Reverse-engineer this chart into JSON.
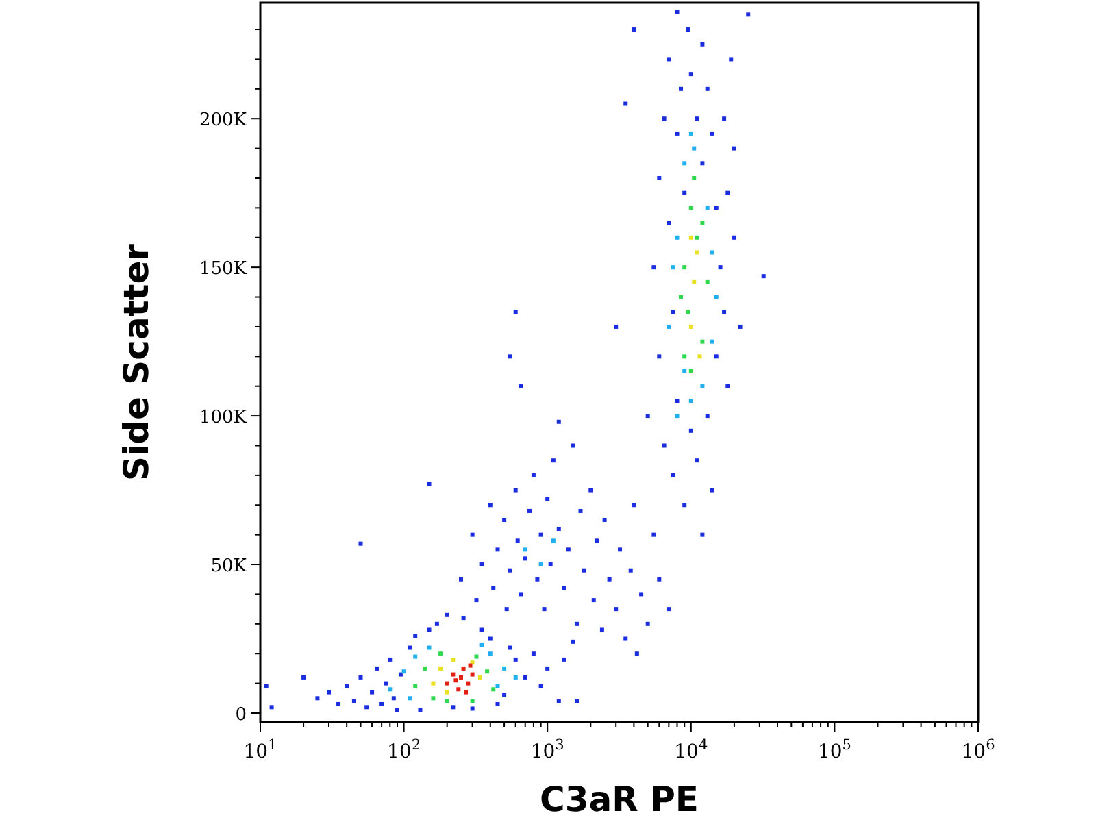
{
  "chart_data": {
    "type": "scatter",
    "xlabel": "C3aR PE",
    "ylabel": "Side Scatter",
    "log": "x",
    "marker": "square",
    "grid": false,
    "xlim": [
      10,
      1000000
    ],
    "ylim": [
      -3000,
      239000
    ],
    "xticks": [
      {
        "value": 10,
        "label": "10$^{1}$"
      },
      {
        "value": 20,
        "label": null
      },
      {
        "value": 30,
        "label": null
      },
      {
        "value": 40,
        "label": null
      },
      {
        "value": 50,
        "label": null
      },
      {
        "value": 60,
        "label": null
      },
      {
        "value": 70,
        "label": null
      },
      {
        "value": 80,
        "label": null
      },
      {
        "value": 90,
        "label": null
      },
      {
        "value": 100,
        "label": "10$^{2}$"
      },
      {
        "value": 200,
        "label": null
      },
      {
        "value": 300,
        "label": null
      },
      {
        "value": 400,
        "label": null
      },
      {
        "value": 500,
        "label": null
      },
      {
        "value": 600,
        "label": null
      },
      {
        "value": 700,
        "label": null
      },
      {
        "value": 800,
        "label": null
      },
      {
        "value": 900,
        "label": null
      },
      {
        "value": 1000,
        "label": "10$^{3}$"
      },
      {
        "value": 2000,
        "label": null
      },
      {
        "value": 3000,
        "label": null
      },
      {
        "value": 4000,
        "label": null
      },
      {
        "value": 5000,
        "label": null
      },
      {
        "value": 6000,
        "label": null
      },
      {
        "value": 7000,
        "label": null
      },
      {
        "value": 8000,
        "label": null
      },
      {
        "value": 9000,
        "label": null
      },
      {
        "value": 10000,
        "label": "10$^{4}$"
      },
      {
        "value": 20000,
        "label": null
      },
      {
        "value": 30000,
        "label": null
      },
      {
        "value": 40000,
        "label": null
      },
      {
        "value": 50000,
        "label": null
      },
      {
        "value": 60000,
        "label": null
      },
      {
        "value": 70000,
        "label": null
      },
      {
        "value": 80000,
        "label": null
      },
      {
        "value": 90000,
        "label": null
      },
      {
        "value": 100000,
        "label": "10$^{5}$"
      },
      {
        "value": 200000,
        "label": null
      },
      {
        "value": 300000,
        "label": null
      },
      {
        "value": 400000,
        "label": null
      },
      {
        "value": 500000,
        "label": null
      },
      {
        "value": 600000,
        "label": null
      },
      {
        "value": 700000,
        "label": null
      },
      {
        "value": 800000,
        "label": null
      },
      {
        "value": 900000,
        "label": null
      },
      {
        "value": 1000000,
        "label": "10$^{6}$"
      }
    ],
    "yticks": [
      {
        "value": 0,
        "label": "0"
      },
      {
        "value": 10000,
        "label": null
      },
      {
        "value": 20000,
        "label": null
      },
      {
        "value": 30000,
        "label": null
      },
      {
        "value": 40000,
        "label": null
      },
      {
        "value": 50000,
        "label": "50K"
      },
      {
        "value": 60000,
        "label": null
      },
      {
        "value": 70000,
        "label": null
      },
      {
        "value": 80000,
        "label": null
      },
      {
        "value": 90000,
        "label": null
      },
      {
        "value": 100000,
        "label": "100K"
      },
      {
        "value": 110000,
        "label": null
      },
      {
        "value": 120000,
        "label": null
      },
      {
        "value": 130000,
        "label": null
      },
      {
        "value": 140000,
        "label": null
      },
      {
        "value": 150000,
        "label": "150K"
      },
      {
        "value": 160000,
        "label": null
      },
      {
        "value": 170000,
        "label": null
      },
      {
        "value": 180000,
        "label": null
      },
      {
        "value": 190000,
        "label": null
      },
      {
        "value": 200000,
        "label": "200K"
      },
      {
        "value": 210000,
        "label": null
      },
      {
        "value": 220000,
        "label": null
      },
      {
        "value": 230000,
        "label": null
      }
    ],
    "series": [
      {
        "color": "#1a2ee0",
        "x": [
          11,
          12,
          20,
          25,
          30,
          35,
          40,
          45,
          50,
          55,
          60,
          65,
          70,
          75,
          80,
          85,
          90,
          95,
          110,
          120,
          130,
          150,
          170,
          200,
          220,
          260,
          300,
          350,
          400,
          450,
          500,
          550,
          600,
          700,
          800,
          900,
          1000,
          1200,
          1300,
          1600,
          1500,
          250,
          300,
          320,
          350,
          400,
          420,
          450,
          500,
          520,
          550,
          600,
          620,
          650,
          700,
          750,
          800,
          850,
          900,
          950,
          1000,
          1050,
          1100,
          1200,
          1300,
          1400,
          1500,
          1600,
          1700,
          1800,
          2000,
          2100,
          2200,
          2400,
          2500,
          2700,
          3000,
          3200,
          3500,
          3800,
          4000,
          4500,
          5000,
          5500,
          6000,
          7000,
          4200,
          600,
          550,
          650,
          1200,
          50,
          150,
          3000,
          4000,
          3500,
          5000,
          5500,
          6000,
          6000,
          6500,
          6500,
          7000,
          7000,
          7500,
          7500,
          8000,
          8000,
          8000,
          8500,
          9000,
          9000,
          9500,
          10000,
          10000,
          11000,
          11000,
          12000,
          12000,
          13000,
          13000,
          14000,
          15000,
          15000,
          16000,
          17000,
          17000,
          18000,
          18000,
          20000,
          20000,
          22000,
          19000,
          25000,
          32000,
          12000,
          14000
        ],
        "values": [
          9000,
          2000,
          12000,
          5000,
          7000,
          3000,
          9000,
          4000,
          12000,
          2000,
          7000,
          15000,
          3000,
          10000,
          18000,
          5000,
          1000,
          13000,
          22000,
          26000,
          1000,
          28000,
          30000,
          33000,
          2000,
          32000,
          1500,
          28000,
          25000,
          3000,
          6000,
          22000,
          18000,
          12000,
          20000,
          9000,
          15000,
          4000,
          18000,
          4000,
          24000,
          45000,
          60000,
          38000,
          50000,
          70000,
          42000,
          55000,
          65000,
          35000,
          48000,
          75000,
          58000,
          40000,
          52000,
          68000,
          80000,
          45000,
          60000,
          35000,
          72000,
          50000,
          85000,
          62000,
          42000,
          55000,
          90000,
          30000,
          68000,
          48000,
          75000,
          38000,
          58000,
          28000,
          65000,
          45000,
          35000,
          55000,
          25000,
          48000,
          70000,
          40000,
          30000,
          60000,
          45000,
          35000,
          20000,
          135000,
          120000,
          110000,
          98000,
          57000,
          77000,
          130000,
          230000,
          205000,
          100000,
          150000,
          180000,
          120000,
          200000,
          90000,
          220000,
          165000,
          135000,
          80000,
          236000,
          195000,
          105000,
          210000,
          175000,
          70000,
          230000,
          215000,
          95000,
          200000,
          85000,
          225000,
          185000,
          210000,
          100000,
          195000,
          170000,
          120000,
          150000,
          200000,
          135000,
          110000,
          175000,
          160000,
          190000,
          130000,
          220000,
          235000,
          147000,
          60000,
          75000
        ]
      },
      {
        "color": "#20b0f0",
        "x": [
          80,
          100,
          110,
          120,
          400,
          450,
          500,
          600,
          150,
          350,
          700,
          900,
          1100,
          7000,
          8000,
          8000,
          9000,
          9000,
          10000,
          10500,
          12000,
          13000,
          14000,
          14000,
          15000,
          7500,
          10000
        ],
        "values": [
          8000,
          14000,
          5000,
          19000,
          20000,
          9000,
          15000,
          12000,
          22000,
          23000,
          55000,
          50000,
          58000,
          130000,
          100000,
          160000,
          115000,
          185000,
          105000,
          190000,
          110000,
          170000,
          125000,
          155000,
          140000,
          150000,
          195000
        ]
      },
      {
        "color": "#30d850",
        "x": [
          120,
          140,
          160,
          180,
          320,
          380,
          420,
          200,
          300,
          9000,
          9000,
          9500,
          10000,
          10000,
          11000,
          12000,
          12000,
          13000,
          10500,
          8500
        ],
        "values": [
          9000,
          15000,
          5000,
          20000,
          19000,
          14000,
          8000,
          4000,
          4000,
          120000,
          150000,
          135000,
          170000,
          115000,
          160000,
          125000,
          165000,
          145000,
          180000,
          140000
        ]
      },
      {
        "color": "#e8e020",
        "x": [
          160,
          180,
          340,
          300,
          220,
          200,
          10000,
          10500,
          11000,
          11500,
          10000
        ],
        "values": [
          10000,
          15000,
          12000,
          17000,
          18000,
          7000,
          130000,
          145000,
          155000,
          120000,
          160000
        ]
      },
      {
        "color": "#e02010",
        "x": [
          200,
          220,
          240,
          250,
          260,
          280,
          300,
          230,
          270,
          290
        ],
        "values": [
          10000,
          13000,
          8000,
          12000,
          15000,
          10000,
          13000,
          11000,
          7000,
          16000
        ]
      }
    ]
  }
}
